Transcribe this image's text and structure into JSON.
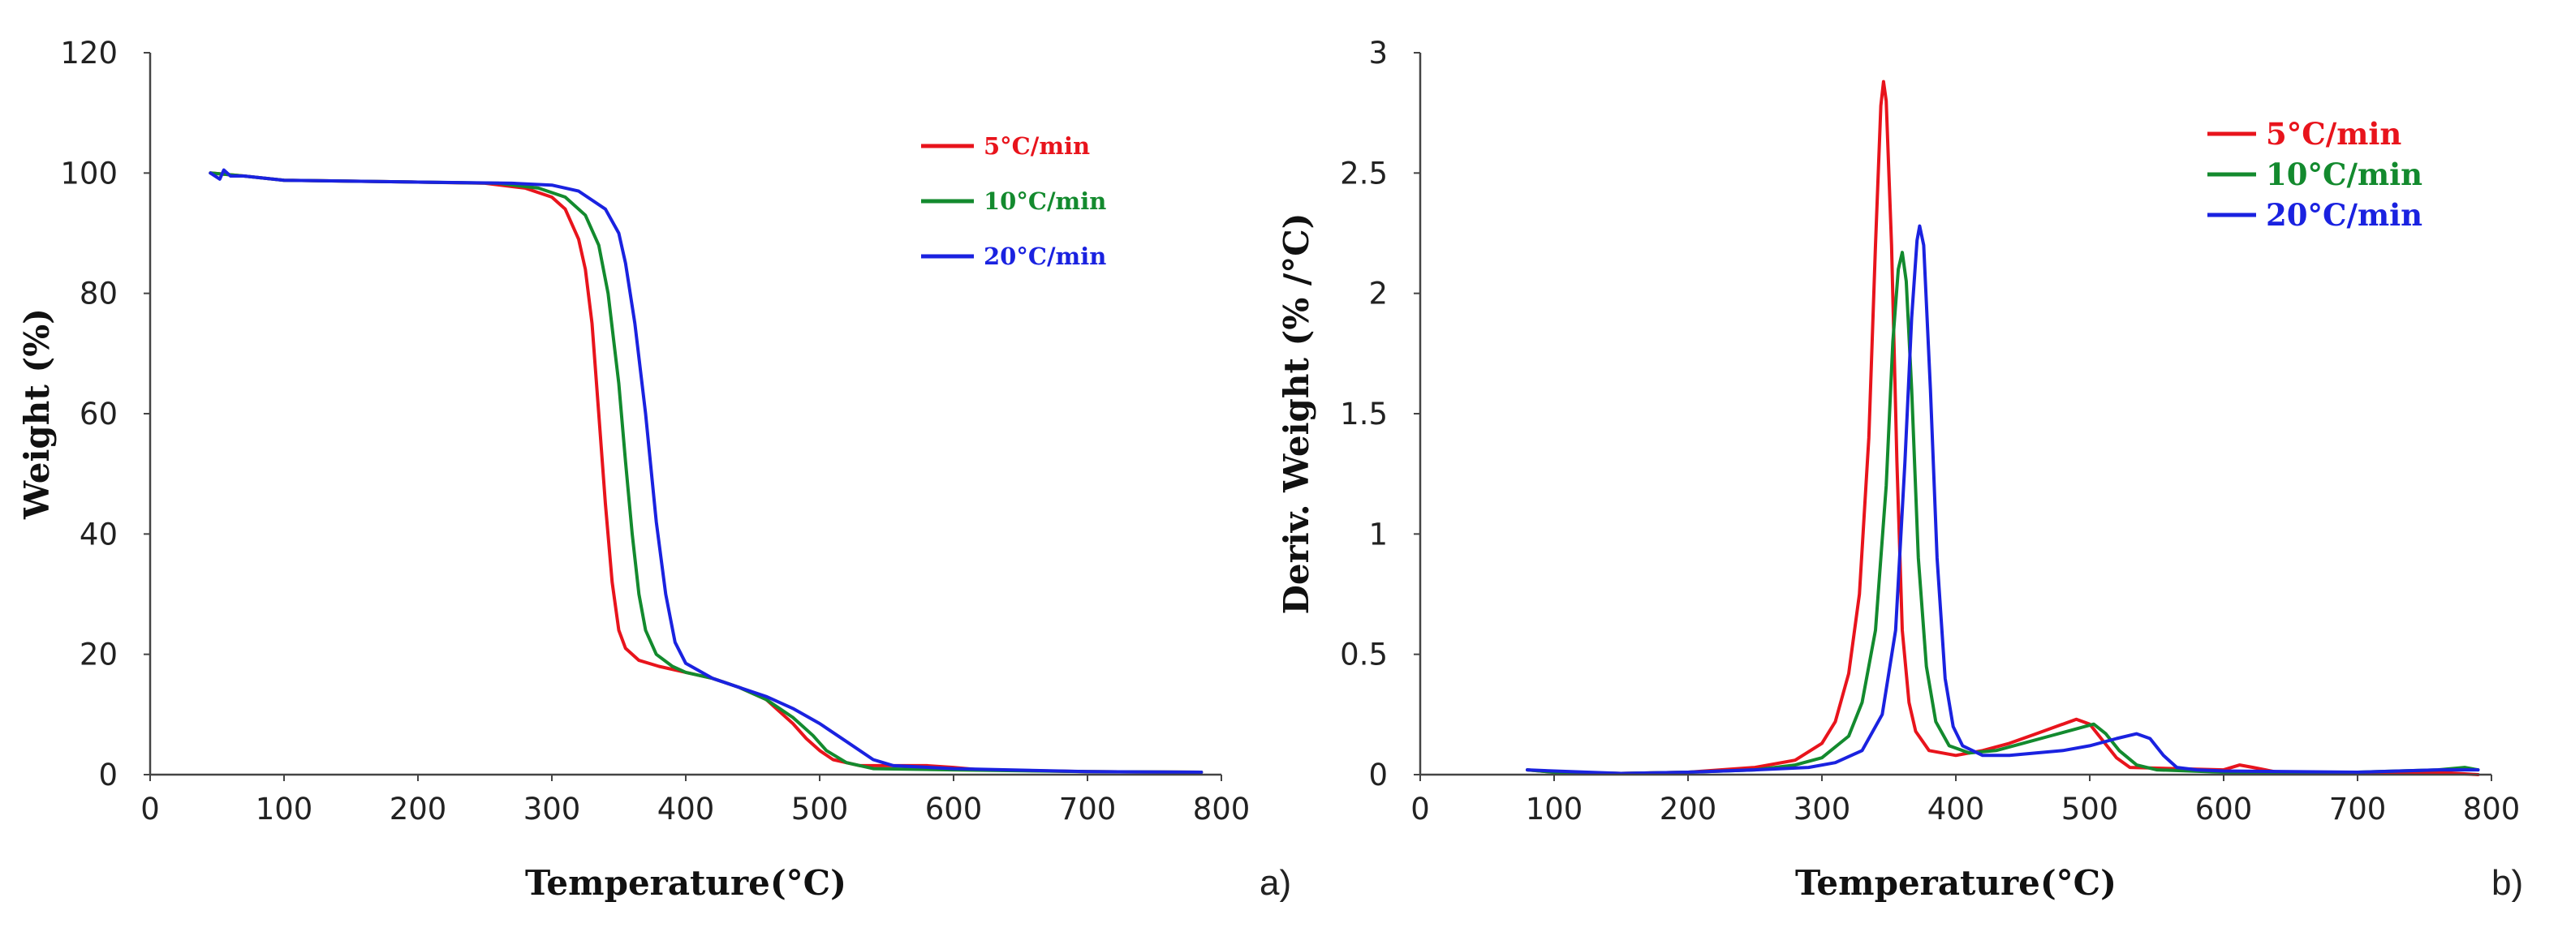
{
  "chart_data": [
    {
      "type": "line",
      "panel_label": "a)",
      "title": "",
      "xlabel": "Temperature(°C)",
      "ylabel": "Weight (%)",
      "xlim": [
        0,
        800
      ],
      "ylim": [
        0,
        120
      ],
      "xticks": [
        "0",
        "100",
        "200",
        "300",
        "400",
        "500",
        "600",
        "700",
        "800"
      ],
      "yticks": [
        "0",
        "20",
        "40",
        "60",
        "80",
        "100",
        "120"
      ],
      "grid": false,
      "legend_position": "top-right",
      "series": [
        {
          "name": "5°C/min",
          "color": "#e8141c",
          "points": [
            [
              45,
              100
            ],
            [
              70,
              99.5
            ],
            [
              100,
              98.8
            ],
            [
              200,
              98.5
            ],
            [
              250,
              98.3
            ],
            [
              280,
              97.5
            ],
            [
              300,
              96
            ],
            [
              310,
              94
            ],
            [
              320,
              89
            ],
            [
              325,
              84
            ],
            [
              330,
              75
            ],
            [
              335,
              60
            ],
            [
              340,
              45
            ],
            [
              345,
              32
            ],
            [
              350,
              24
            ],
            [
              355,
              21
            ],
            [
              365,
              19
            ],
            [
              380,
              18
            ],
            [
              400,
              17
            ],
            [
              420,
              16
            ],
            [
              440,
              14.5
            ],
            [
              460,
              12.5
            ],
            [
              480,
              8.5
            ],
            [
              490,
              6
            ],
            [
              500,
              4
            ],
            [
              510,
              2.5
            ],
            [
              530,
              1.5
            ],
            [
              560,
              1.5
            ],
            [
              580,
              1.5
            ],
            [
              600,
              1.2
            ],
            [
              620,
              0.8
            ],
            [
              700,
              0.5
            ],
            [
              785,
              0.4
            ]
          ]
        },
        {
          "name": "10°C/min",
          "color": "#138a2e",
          "points": [
            [
              45,
              100
            ],
            [
              70,
              99.5
            ],
            [
              100,
              98.8
            ],
            [
              200,
              98.5
            ],
            [
              260,
              98.3
            ],
            [
              290,
              97.5
            ],
            [
              310,
              96
            ],
            [
              325,
              93
            ],
            [
              335,
              88
            ],
            [
              342,
              80
            ],
            [
              350,
              65
            ],
            [
              355,
              52
            ],
            [
              360,
              40
            ],
            [
              365,
              30
            ],
            [
              370,
              24
            ],
            [
              378,
              20
            ],
            [
              390,
              18
            ],
            [
              400,
              17
            ],
            [
              420,
              16
            ],
            [
              440,
              14.5
            ],
            [
              460,
              12.5
            ],
            [
              480,
              9.5
            ],
            [
              495,
              6.5
            ],
            [
              505,
              4
            ],
            [
              520,
              2
            ],
            [
              540,
              1
            ],
            [
              600,
              0.8
            ],
            [
              700,
              0.5
            ],
            [
              785,
              0.4
            ]
          ]
        },
        {
          "name": "20°C/min",
          "color": "#1a22e0",
          "points": [
            [
              45,
              100
            ],
            [
              52,
              99
            ],
            [
              55,
              100.5
            ],
            [
              60,
              99.5
            ],
            [
              70,
              99.5
            ],
            [
              100,
              98.8
            ],
            [
              200,
              98.5
            ],
            [
              270,
              98.3
            ],
            [
              300,
              98
            ],
            [
              320,
              97
            ],
            [
              340,
              94
            ],
            [
              350,
              90
            ],
            [
              355,
              85
            ],
            [
              362,
              75
            ],
            [
              370,
              60
            ],
            [
              378,
              42
            ],
            [
              385,
              30
            ],
            [
              392,
              22
            ],
            [
              400,
              18.5
            ],
            [
              420,
              16
            ],
            [
              440,
              14.5
            ],
            [
              460,
              13
            ],
            [
              480,
              11
            ],
            [
              500,
              8.5
            ],
            [
              520,
              5.5
            ],
            [
              540,
              2.5
            ],
            [
              555,
              1.5
            ],
            [
              600,
              1
            ],
            [
              700,
              0.5
            ],
            [
              785,
              0.4
            ]
          ]
        }
      ]
    },
    {
      "type": "line",
      "panel_label": "b)",
      "title": "",
      "xlabel": "Temperature(°C)",
      "ylabel": "Deriv. Weight (% /°C)",
      "xlim": [
        0,
        800
      ],
      "ylim": [
        0,
        3
      ],
      "xticks": [
        "0",
        "100",
        "200",
        "300",
        "400",
        "500",
        "600",
        "700",
        "800"
      ],
      "yticks": [
        "0",
        "0.5",
        "1",
        "1.5",
        "2",
        "2.5",
        "3"
      ],
      "grid": false,
      "legend_position": "top-right",
      "series": [
        {
          "name": "5°C/min",
          "color": "#e8141c",
          "points": [
            [
              80,
              0.02
            ],
            [
              100,
              0.01
            ],
            [
              150,
              0.005
            ],
            [
              200,
              0.01
            ],
            [
              250,
              0.03
            ],
            [
              280,
              0.06
            ],
            [
              300,
              0.13
            ],
            [
              310,
              0.22
            ],
            [
              320,
              0.42
            ],
            [
              328,
              0.75
            ],
            [
              335,
              1.4
            ],
            [
              340,
              2.2
            ],
            [
              344,
              2.78
            ],
            [
              346,
              2.88
            ],
            [
              348,
              2.8
            ],
            [
              352,
              2.2
            ],
            [
              356,
              1.3
            ],
            [
              360,
              0.6
            ],
            [
              365,
              0.3
            ],
            [
              370,
              0.18
            ],
            [
              380,
              0.1
            ],
            [
              400,
              0.08
            ],
            [
              420,
              0.1
            ],
            [
              440,
              0.13
            ],
            [
              460,
              0.17
            ],
            [
              480,
              0.21
            ],
            [
              490,
              0.23
            ],
            [
              500,
              0.21
            ],
            [
              510,
              0.14
            ],
            [
              520,
              0.07
            ],
            [
              530,
              0.03
            ],
            [
              600,
              0.02
            ],
            [
              612,
              0.04
            ],
            [
              622,
              0.03
            ],
            [
              640,
              0.01
            ],
            [
              700,
              0.01
            ],
            [
              760,
              0.01
            ],
            [
              790,
              0.0
            ]
          ]
        },
        {
          "name": "10°C/min",
          "color": "#138a2e",
          "points": [
            [
              80,
              0.02
            ],
            [
              100,
              0.01
            ],
            [
              150,
              0.005
            ],
            [
              200,
              0.01
            ],
            [
              250,
              0.02
            ],
            [
              280,
              0.04
            ],
            [
              300,
              0.07
            ],
            [
              320,
              0.16
            ],
            [
              330,
              0.3
            ],
            [
              340,
              0.6
            ],
            [
              348,
              1.2
            ],
            [
              353,
              1.8
            ],
            [
              357,
              2.1
            ],
            [
              360,
              2.17
            ],
            [
              363,
              2.05
            ],
            [
              367,
              1.6
            ],
            [
              372,
              0.9
            ],
            [
              378,
              0.45
            ],
            [
              385,
              0.22
            ],
            [
              395,
              0.12
            ],
            [
              410,
              0.09
            ],
            [
              430,
              0.1
            ],
            [
              450,
              0.13
            ],
            [
              470,
              0.16
            ],
            [
              490,
              0.19
            ],
            [
              503,
              0.21
            ],
            [
              512,
              0.17
            ],
            [
              522,
              0.1
            ],
            [
              535,
              0.04
            ],
            [
              550,
              0.02
            ],
            [
              600,
              0.01
            ],
            [
              700,
              0.01
            ],
            [
              760,
              0.02
            ],
            [
              780,
              0.03
            ],
            [
              790,
              0.02
            ]
          ]
        },
        {
          "name": "20°C/min",
          "color": "#1a22e0",
          "points": [
            [
              80,
              0.02
            ],
            [
              100,
              0.015
            ],
            [
              150,
              0.005
            ],
            [
              200,
              0.01
            ],
            [
              250,
              0.02
            ],
            [
              290,
              0.03
            ],
            [
              310,
              0.05
            ],
            [
              330,
              0.1
            ],
            [
              345,
              0.25
            ],
            [
              355,
              0.6
            ],
            [
              362,
              1.3
            ],
            [
              367,
              1.9
            ],
            [
              371,
              2.22
            ],
            [
              373,
              2.28
            ],
            [
              376,
              2.2
            ],
            [
              381,
              1.6
            ],
            [
              386,
              0.9
            ],
            [
              392,
              0.4
            ],
            [
              398,
              0.2
            ],
            [
              405,
              0.12
            ],
            [
              420,
              0.08
            ],
            [
              440,
              0.08
            ],
            [
              460,
              0.09
            ],
            [
              480,
              0.1
            ],
            [
              500,
              0.12
            ],
            [
              520,
              0.15
            ],
            [
              535,
              0.17
            ],
            [
              545,
              0.15
            ],
            [
              555,
              0.08
            ],
            [
              565,
              0.03
            ],
            [
              580,
              0.02
            ],
            [
              600,
              0.015
            ],
            [
              700,
              0.01
            ],
            [
              760,
              0.02
            ],
            [
              790,
              0.02
            ]
          ]
        }
      ]
    }
  ]
}
